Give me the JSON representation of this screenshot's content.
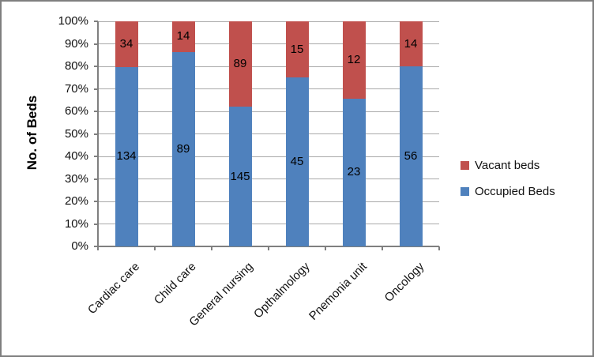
{
  "chart_data": {
    "type": "bar",
    "variant": "stacked-100-percent-column",
    "title": "",
    "ylabel": "No. of Beds",
    "xlabel": "",
    "categories": [
      "Cardiac care",
      "Child care",
      "General nursing",
      "Opthalmology",
      "Pnemonia unit",
      "Oncology"
    ],
    "series": [
      {
        "name": "Occupied Beds",
        "color": "#4f81bd",
        "values": [
          134,
          89,
          145,
          45,
          23,
          56
        ]
      },
      {
        "name": "Vacant beds",
        "color": "#c0504d",
        "values": [
          34,
          14,
          89,
          15,
          12,
          14
        ]
      }
    ],
    "y_ticks": [
      "0%",
      "10%",
      "20%",
      "30%",
      "40%",
      "50%",
      "60%",
      "70%",
      "80%",
      "90%",
      "100%"
    ],
    "ylim": [
      0,
      1
    ],
    "grid": true,
    "legend_position": "right",
    "legend_order": [
      "Vacant beds",
      "Occupied Beds"
    ]
  },
  "colors": {
    "occupied": "#4f81bd",
    "vacant": "#c0504d",
    "axis_line": "#7f7f7f",
    "gridline": "#a9a9a9",
    "frame_border": "#7f7f7f",
    "background": "#ffffff",
    "text": "#111111"
  }
}
